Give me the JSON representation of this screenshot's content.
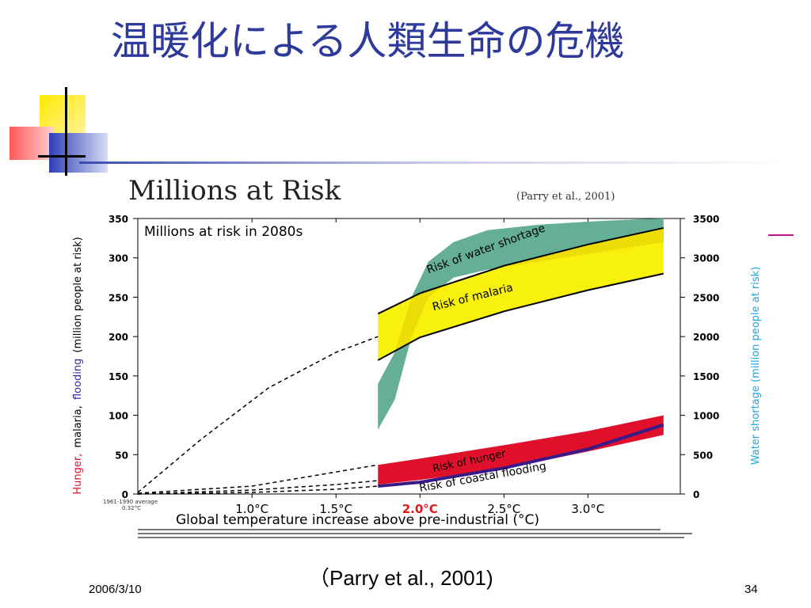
{
  "slide": {
    "title": "温暖化による人類生命の危機",
    "caption": "（Parry et al., 2001)",
    "date": "2006/3/10",
    "page_number": "34"
  },
  "chart_data": {
    "type": "area",
    "title": "Millions at Risk",
    "title_source": "(Parry et al., 2001)",
    "subtitle": "Millions at risk in 2080s",
    "xlabel": "Global temperature increase above pre-industrial (°C)",
    "ylabel_left": [
      "Hunger,",
      "malaria,",
      "flooding",
      "(million people at risk)"
    ],
    "ylabel_right": "Water shortage (million people at risk)",
    "ylim_left": [
      0,
      350
    ],
    "ylim_right": [
      0,
      3500
    ],
    "xlim": [
      0.32,
      3.55
    ],
    "yticks_left": [
      0,
      50,
      100,
      150,
      200,
      250,
      300,
      350
    ],
    "yticks_right": [
      0,
      500,
      1000,
      1500,
      2000,
      2500,
      3000,
      3500
    ],
    "xticks": [
      {
        "value": 1.0,
        "label": "1.0°C",
        "highlight": false
      },
      {
        "value": 1.5,
        "label": "1.5°C",
        "highlight": false
      },
      {
        "value": 2.0,
        "label": "2.0°C",
        "highlight": true
      },
      {
        "value": 2.5,
        "label": "2.5°C",
        "highlight": false
      },
      {
        "value": 3.0,
        "label": "3.0°C",
        "highlight": false
      }
    ],
    "baseline_note": [
      "1961-1990 average",
      "0.32°C"
    ],
    "colors": {
      "water": "#1aa6e6",
      "malaria": "#f7f000",
      "malaria_overlap": "#f2c000",
      "hunger": "#e0102a",
      "flooding": "#3a1a8a",
      "highlight": "#e8141c"
    },
    "series": [
      {
        "name": "Risk of water shortage",
        "axis": "right",
        "x": [
          1.75,
          1.85,
          1.95,
          2.05,
          2.2,
          2.4,
          2.7,
          3.0,
          3.3,
          3.45
        ],
        "upper": [
          1400,
          1800,
          2500,
          2950,
          3200,
          3350,
          3420,
          3460,
          3490,
          3500
        ],
        "lower": [
          820,
          1200,
          2000,
          2500,
          2750,
          2850,
          2950,
          3050,
          3150,
          3200
        ]
      },
      {
        "name": "Risk of malaria",
        "axis": "left",
        "x": [
          1.75,
          2.0,
          2.5,
          3.0,
          3.45
        ],
        "upper": [
          229,
          255,
          290,
          317,
          338
        ],
        "lower": [
          170,
          199,
          232,
          259,
          280
        ]
      },
      {
        "name": "Risk of hunger",
        "axis": "left",
        "x": [
          1.75,
          2.0,
          2.5,
          3.0,
          3.45
        ],
        "upper": [
          37,
          45,
          62,
          80,
          100
        ],
        "lower": [
          12,
          18,
          32,
          54,
          75
        ]
      },
      {
        "name": "Risk of coastal flooding",
        "axis": "left",
        "x": [
          1.75,
          2.0,
          2.5,
          3.0,
          3.45
        ],
        "values": [
          10,
          15,
          33,
          57,
          88
        ]
      }
    ],
    "dashed_guides": [
      {
        "x": [
          0.32,
          0.7,
          1.1,
          1.5,
          1.75
        ],
        "y": [
          2,
          70,
          135,
          180,
          200
        ]
      },
      {
        "x": [
          0.32,
          1.0,
          1.5,
          1.75
        ],
        "y": [
          1,
          10,
          28,
          37
        ]
      },
      {
        "x": [
          0.32,
          1.0,
          1.5,
          1.75
        ],
        "y": [
          0,
          5,
          12,
          17
        ]
      },
      {
        "x": [
          0.32,
          1.0,
          1.5,
          1.75
        ],
        "y": [
          0,
          2,
          6,
          10
        ]
      }
    ]
  }
}
